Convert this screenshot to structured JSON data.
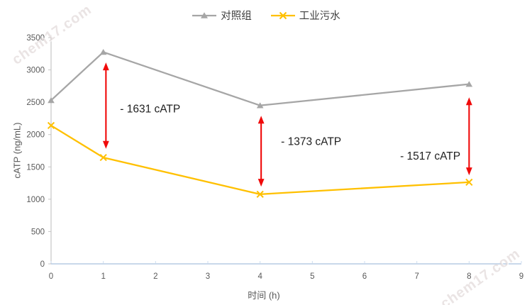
{
  "legend": {
    "items": [
      {
        "label": "对照组",
        "color": "#a6a6a6",
        "marker": "triangle"
      },
      {
        "label": "工业污水",
        "color": "#ffc000",
        "marker": "x"
      }
    ]
  },
  "chart_data": {
    "type": "line",
    "title": "",
    "xlabel": "时间 (h)",
    "ylabel": "cATP (ng/mL)",
    "x": [
      0,
      1,
      4,
      8
    ],
    "series": [
      {
        "name": "对照组",
        "color": "#a6a6a6",
        "marker": "triangle",
        "values": [
          2530,
          3276,
          2450,
          2780
        ]
      },
      {
        "name": "工业污水",
        "color": "#ffc000",
        "marker": "x",
        "values": [
          2140,
          1645,
          1077,
          1263
        ]
      }
    ],
    "xlim": [
      0,
      9
    ],
    "ylim": [
      0,
      3500
    ],
    "x_ticks": [
      0,
      1,
      2,
      3,
      4,
      5,
      6,
      7,
      8,
      9
    ],
    "y_ticks": [
      0,
      500,
      1000,
      1500,
      2000,
      2500,
      3000,
      3500
    ],
    "grid": false,
    "legend_position": "top",
    "axis_colors": {
      "y_axis": "#c6c6c6",
      "x_axis": "#b7cce4",
      "tick_label": "#595959"
    },
    "arrow_color": "#f00a0a",
    "annotation_text_color": "#1f1f1f",
    "annotations": [
      {
        "label": "- 1631 cATP",
        "arrow_x": 1.05,
        "arrow_from": 3115,
        "arrow_to": 1780,
        "text_x": 1.32,
        "text_y": 2400
      },
      {
        "label": "- 1373 cATP",
        "arrow_x": 4.02,
        "arrow_from": 2290,
        "arrow_to": 1195,
        "text_x": 4.4,
        "text_y": 1895
      },
      {
        "label": "- 1517 cATP",
        "arrow_x": 8.0,
        "arrow_from": 2575,
        "arrow_to": 1370,
        "text_x": 6.68,
        "text_y": 1665
      }
    ]
  },
  "watermarks": [
    {
      "text": "chem17.com"
    },
    {
      "text": "chem17.com"
    }
  ]
}
